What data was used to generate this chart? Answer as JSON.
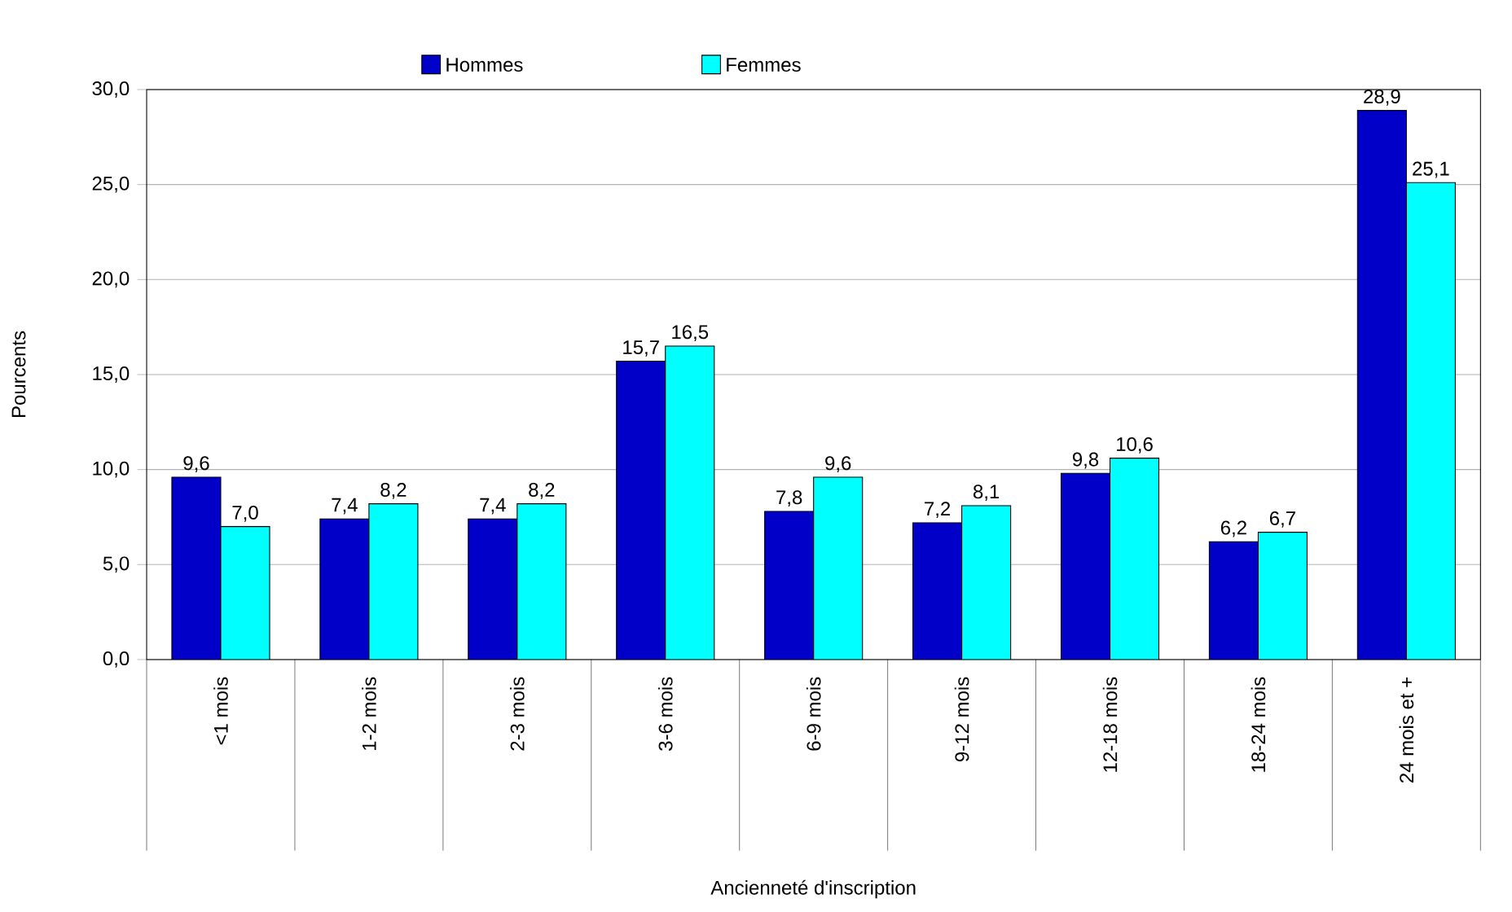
{
  "chart_data": {
    "type": "bar",
    "xlabel": "Ancienneté d'inscription",
    "ylabel": "Pourcents",
    "categories": [
      "<1 mois",
      "1-2 mois",
      "2-3 mois",
      "3-6 mois",
      "6-9 mois",
      "9-12 mois",
      "12-18 mois",
      "18-24 mois",
      "24 mois et +"
    ],
    "series": [
      {
        "name": "Hommes",
        "color": "#0000c8",
        "values": [
          9.6,
          7.4,
          7.4,
          15.7,
          7.8,
          7.2,
          9.8,
          6.2,
          28.9
        ],
        "value_labels": [
          "9,6",
          "7,4",
          "7,4",
          "15,7",
          "7,8",
          "7,2",
          "9,8",
          "6,2",
          "28,9"
        ]
      },
      {
        "name": "Femmes",
        "color": "#00ffff",
        "values": [
          7.0,
          8.2,
          8.2,
          16.5,
          9.6,
          8.1,
          10.6,
          6.7,
          25.1
        ],
        "value_labels": [
          "7,0",
          "8,2",
          "8,2",
          "16,5",
          "9,6",
          "8,1",
          "10,6",
          "6,7",
          "25,1"
        ]
      }
    ],
    "ylim": [
      0,
      30
    ],
    "yticks": [
      {
        "value": 0,
        "label": "0,0"
      },
      {
        "value": 5,
        "label": "5,0"
      },
      {
        "value": 10,
        "label": "10,0"
      },
      {
        "value": 15,
        "label": "15,0"
      },
      {
        "value": 20,
        "label": "20,0"
      },
      {
        "value": 25,
        "label": "25,0"
      },
      {
        "value": 30,
        "label": "30,0"
      }
    ],
    "grid": "y",
    "legend": "top"
  }
}
